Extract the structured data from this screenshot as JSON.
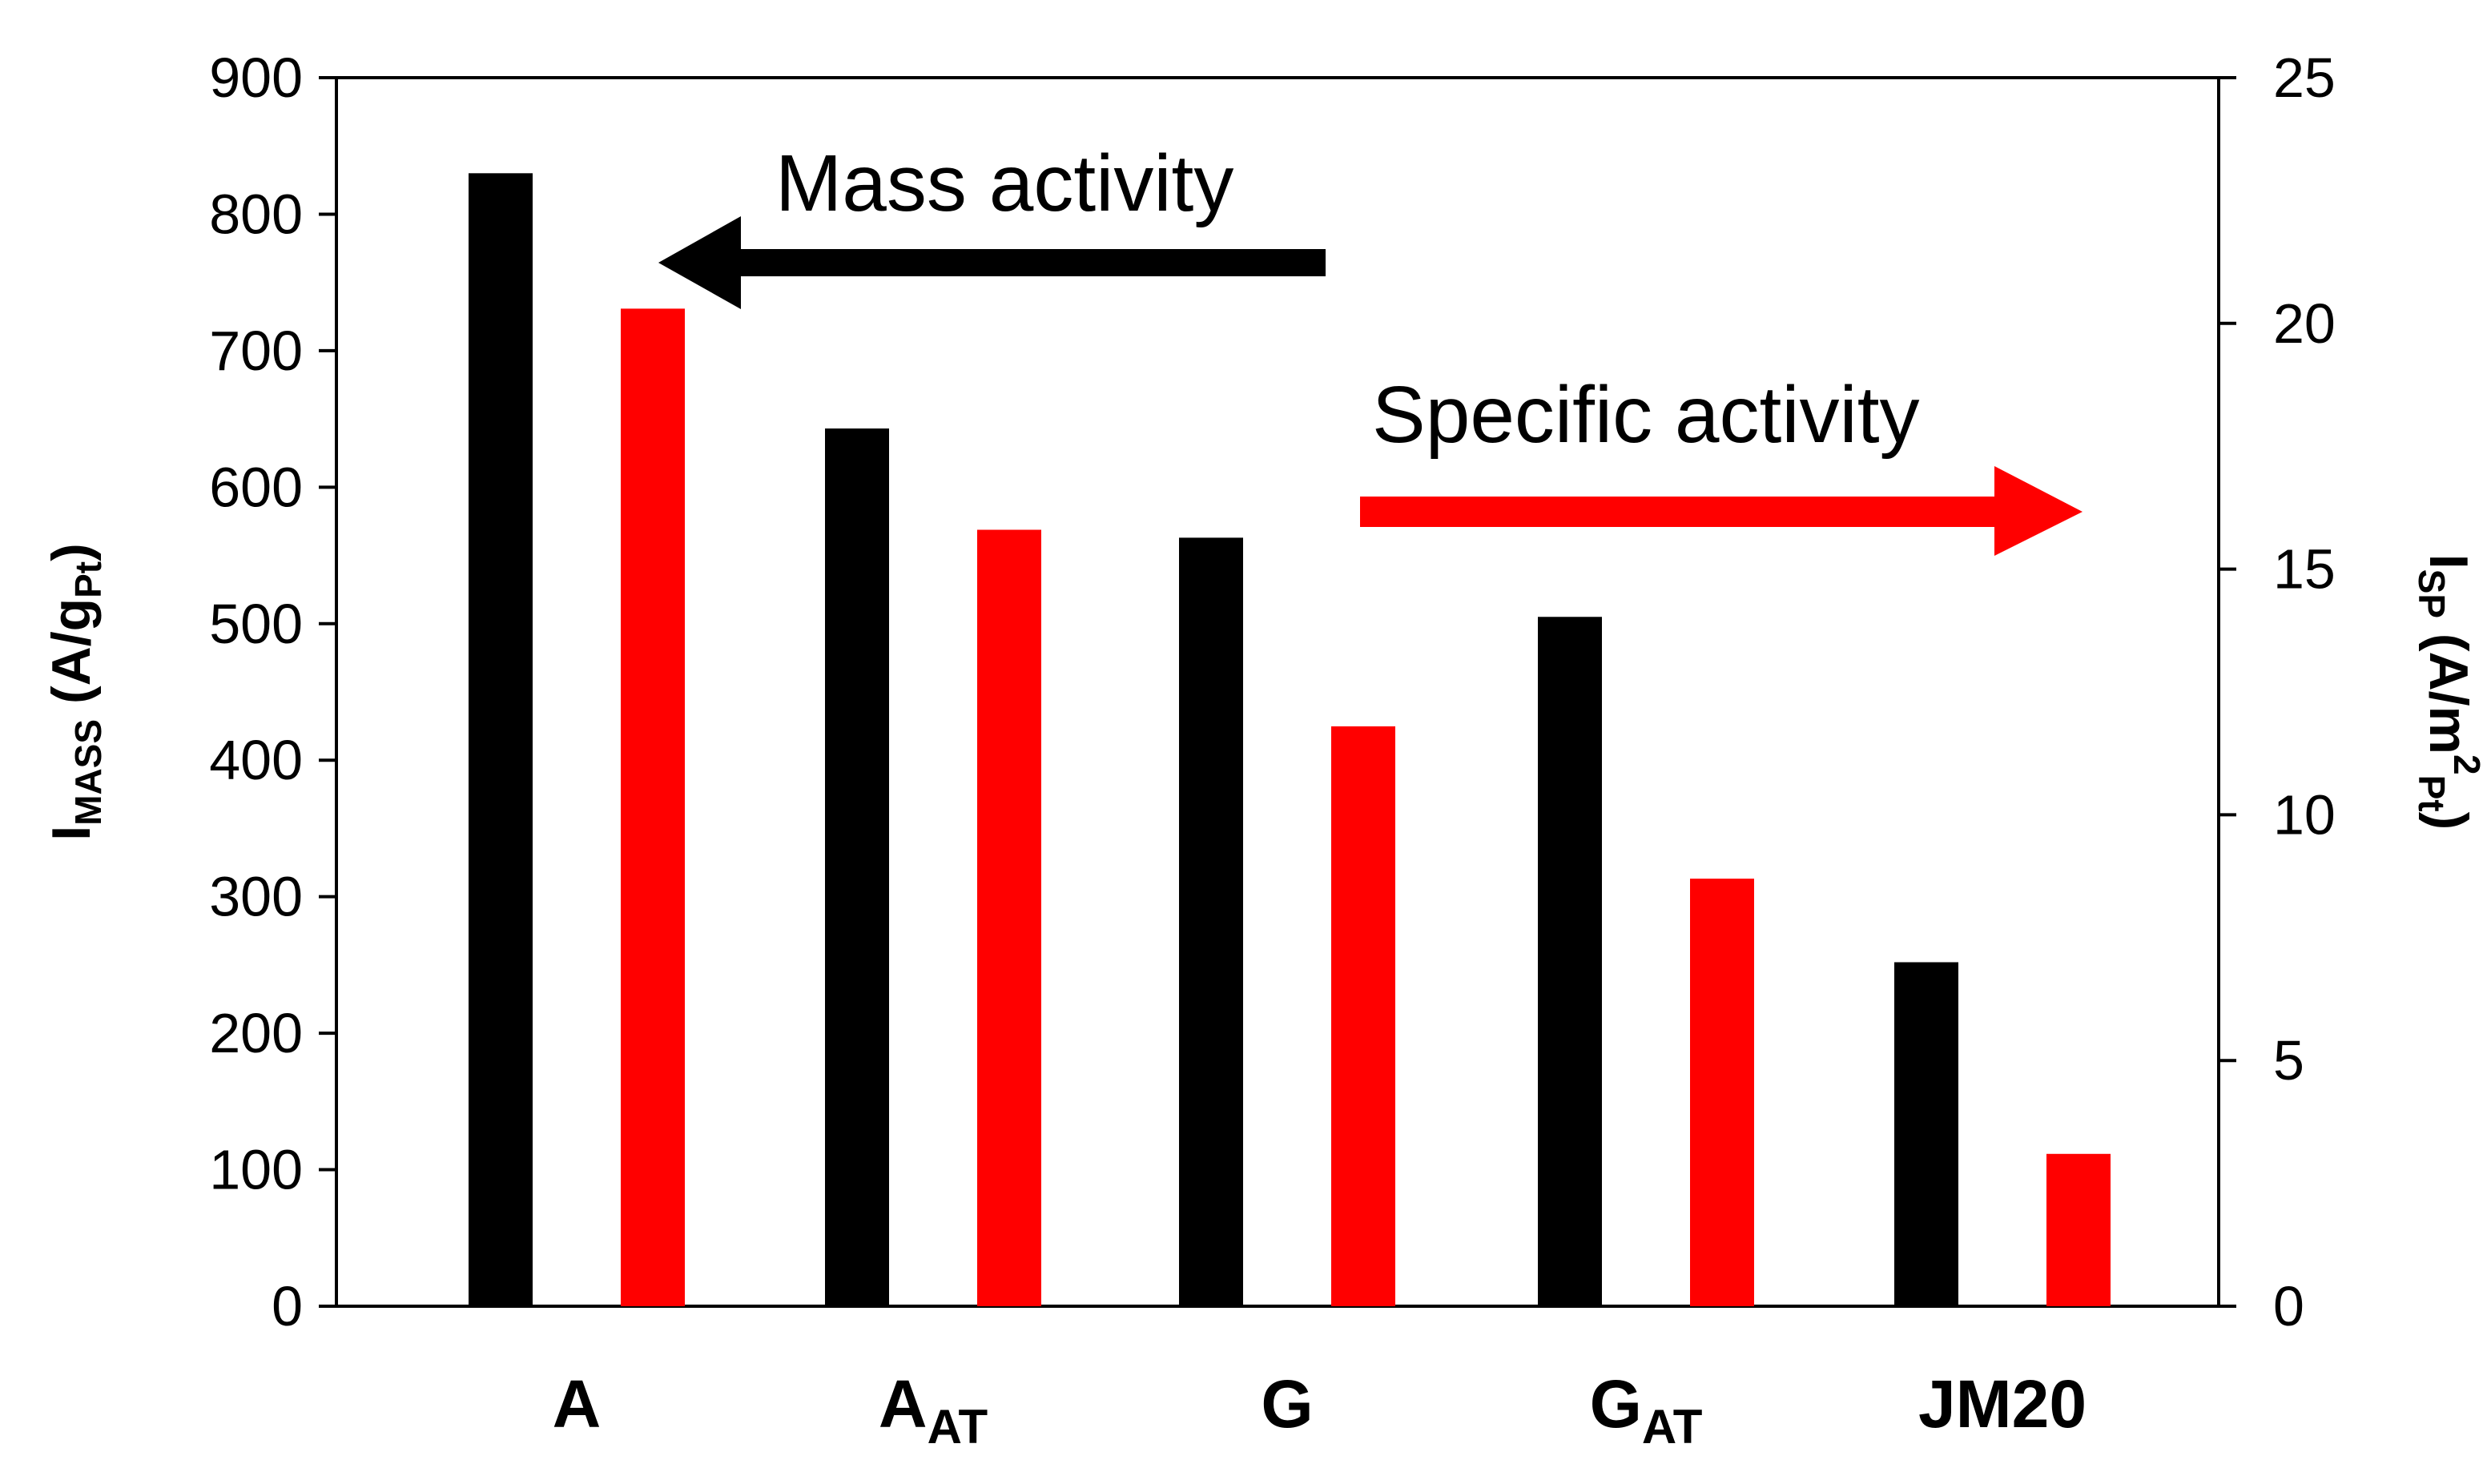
{
  "chart_data": {
    "type": "bar",
    "categories": [
      {
        "main": "A",
        "sub": ""
      },
      {
        "main": "A",
        "sub": "AT"
      },
      {
        "main": "G",
        "sub": ""
      },
      {
        "main": "G",
        "sub": "AT"
      },
      {
        "main": "JM20",
        "sub": ""
      }
    ],
    "series": [
      {
        "name": "Mass activity",
        "axis": "left",
        "color": "#000000",
        "values": [
          830,
          643,
          563,
          505,
          252
        ]
      },
      {
        "name": "Specific activity",
        "axis": "right",
        "color": "#ff0000",
        "values": [
          20.3,
          15.8,
          11.8,
          8.7,
          3.1
        ]
      }
    ],
    "left_axis": {
      "label": {
        "main": "I",
        "sub1": "MASS",
        "mid": " (A/g",
        "sub2": "Pt",
        "end": ")"
      },
      "ylim": [
        0,
        900
      ],
      "ticks": [
        0,
        100,
        200,
        300,
        400,
        500,
        600,
        700,
        800,
        900
      ]
    },
    "right_axis": {
      "label": {
        "main": "I",
        "sub1": "SP",
        "mid": " (A/m",
        "sup": "2",
        "sub2": "Pt",
        "end": ")"
      },
      "ylim": [
        0,
        25
      ],
      "ticks": [
        0,
        5,
        10,
        15,
        20,
        25
      ]
    },
    "annotations": [
      {
        "text": "Mass activity",
        "arrow": "left",
        "color": "#000000"
      },
      {
        "text": "Specific activity",
        "arrow": "right",
        "color": "#ff0000"
      }
    ],
    "grid": false
  }
}
